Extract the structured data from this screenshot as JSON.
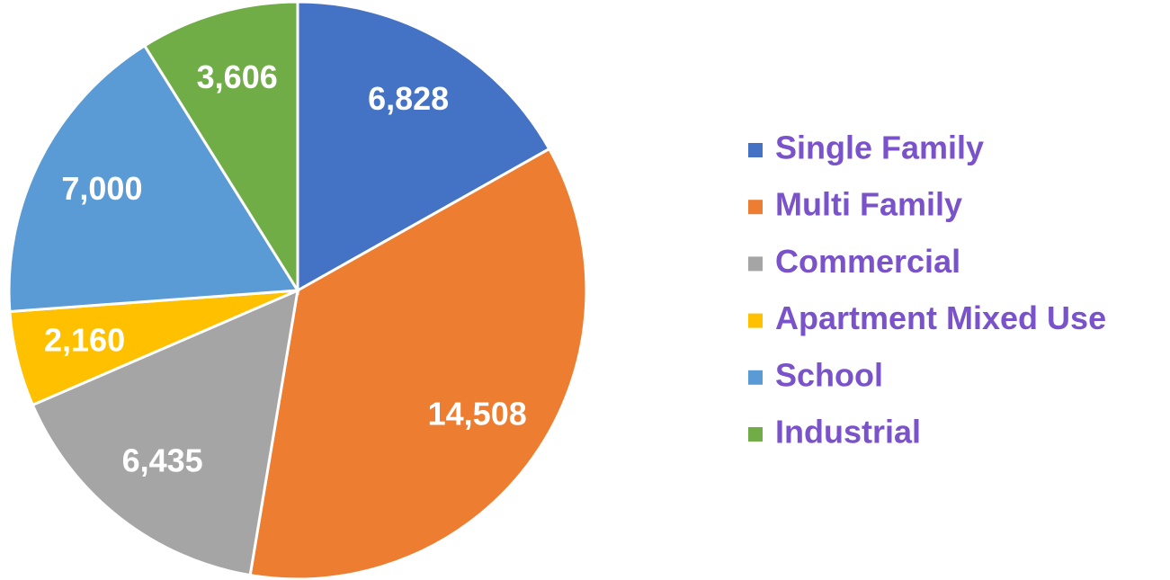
{
  "chart_data": {
    "type": "pie",
    "categories": [
      "Single Family",
      "Multi Family",
      "Commercial",
      "Apartment Mixed Use",
      "School",
      "Industrial"
    ],
    "values": [
      6828,
      14508,
      6435,
      2160,
      7000,
      3606
    ],
    "value_labels": [
      "6,828",
      "14,508",
      "6,435",
      "2,160",
      "7,000",
      "3,606"
    ],
    "colors": [
      "#4472c4",
      "#ed7d31",
      "#a5a5a5",
      "#ffc000",
      "#5b9bd5",
      "#70ad47"
    ],
    "legend": "right"
  }
}
